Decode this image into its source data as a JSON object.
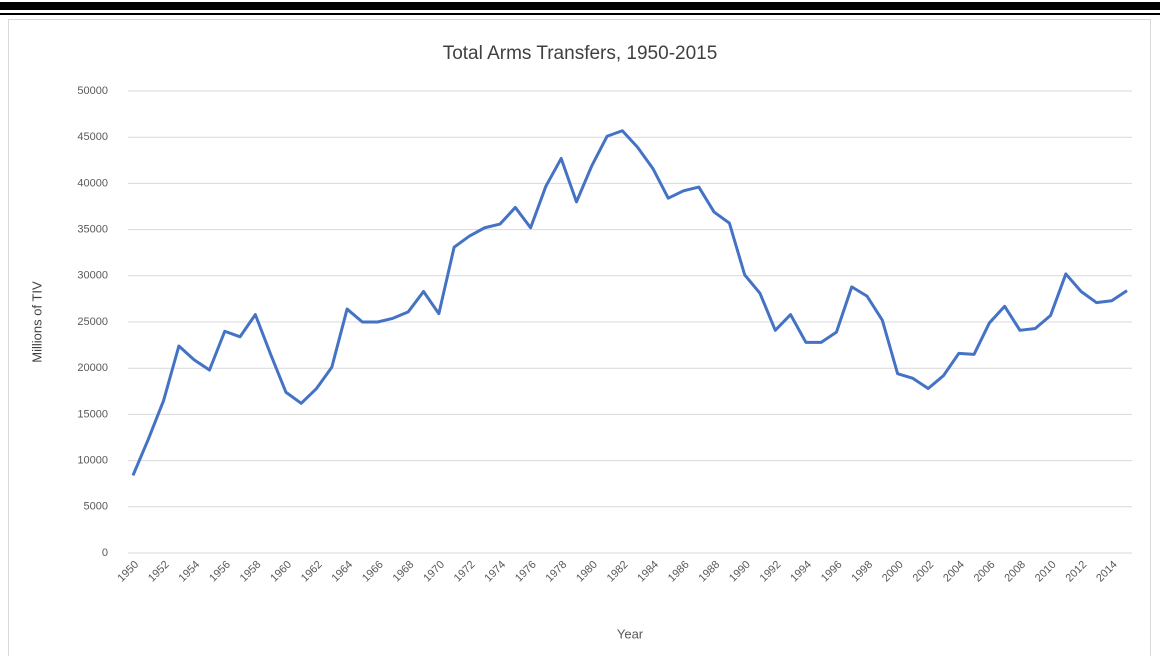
{
  "chart_data": {
    "type": "line",
    "title": "Total Arms Transfers, 1950-2015",
    "x_label": "Year",
    "y_label": "Millions of TIV",
    "x": [
      1950,
      1951,
      1952,
      1953,
      1954,
      1955,
      1956,
      1957,
      1958,
      1959,
      1960,
      1961,
      1962,
      1963,
      1964,
      1965,
      1966,
      1967,
      1968,
      1969,
      1970,
      1971,
      1972,
      1973,
      1974,
      1975,
      1976,
      1977,
      1978,
      1979,
      1980,
      1981,
      1982,
      1983,
      1984,
      1985,
      1986,
      1987,
      1988,
      1989,
      1990,
      1991,
      1992,
      1993,
      1994,
      1995,
      1996,
      1997,
      1998,
      1999,
      2000,
      2001,
      2002,
      2003,
      2004,
      2005,
      2006,
      2007,
      2008,
      2009,
      2010,
      2011,
      2012,
      2013,
      2014,
      2015
    ],
    "series": [
      {
        "name": "Total Arms Transfers",
        "color": "#4472c4",
        "values": [
          8400,
          12300,
          16500,
          22400,
          20900,
          19800,
          24000,
          23400,
          25800,
          21500,
          17400,
          16200,
          17800,
          20100,
          26400,
          25000,
          25000,
          25400,
          26100,
          28300,
          25900,
          33100,
          34300,
          35200,
          35600,
          37400,
          35200,
          39700,
          42700,
          38000,
          41900,
          45100,
          45700,
          43900,
          41600,
          38400,
          39200,
          39600,
          36900,
          35700,
          30100,
          28100,
          24100,
          25800,
          22800,
          22800,
          23900,
          28800,
          27800,
          25200,
          19400,
          18900,
          17800,
          19200,
          21600,
          21500,
          24900,
          26700,
          24100,
          24300,
          25700,
          30200,
          28300,
          27100,
          27300,
          28400
        ]
      }
    ],
    "xlim": [
      1950,
      2015
    ],
    "xticks": [
      1950,
      1952,
      1954,
      1956,
      1958,
      1960,
      1962,
      1964,
      1966,
      1968,
      1970,
      1972,
      1974,
      1976,
      1978,
      1980,
      1982,
      1984,
      1986,
      1988,
      1990,
      1992,
      1994,
      1996,
      1998,
      2000,
      2002,
      2004,
      2006,
      2008,
      2010,
      2012,
      2014
    ],
    "ylim": [
      0,
      50000
    ],
    "yticks": [
      0,
      5000,
      10000,
      15000,
      20000,
      25000,
      30000,
      35000,
      40000,
      45000,
      50000
    ],
    "grid": true
  }
}
